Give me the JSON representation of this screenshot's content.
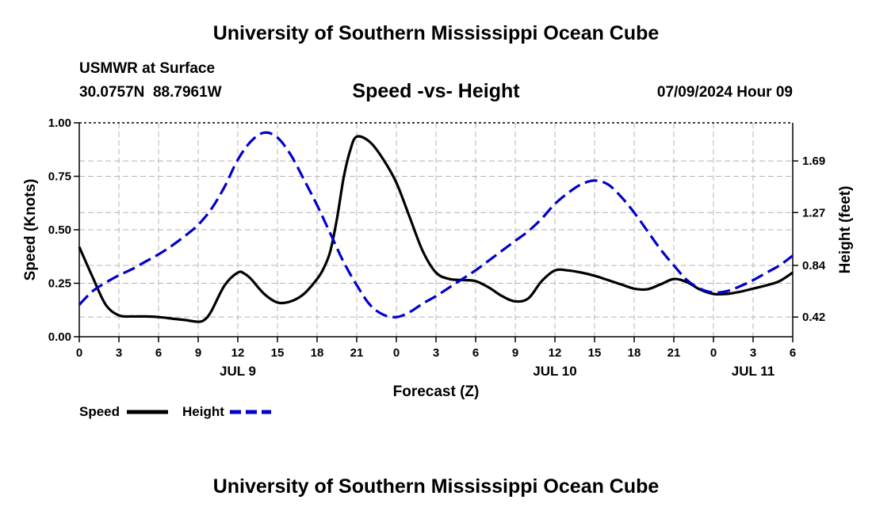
{
  "page": {
    "top_title": "University of Southern Mississippi Ocean Cube",
    "bottom_title": "University of Southern Mississippi Ocean Cube",
    "station": "USMWR at Surface",
    "coords": "30.0757N  88.7961W",
    "datetime": "07/09/2024 Hour 09"
  },
  "chart_data": {
    "type": "line",
    "title": "Speed -vs- Height",
    "xlabel": "Forecast (Z)",
    "ylabel": "Speed (Knots)",
    "y2label": "Height (feet)",
    "x_range": [
      0,
      54
    ],
    "ylim": [
      0,
      1.0
    ],
    "y2lim": [
      0.26,
      2.0
    ],
    "x_ticks": [
      0,
      3,
      6,
      9,
      12,
      15,
      18,
      21,
      24,
      27,
      30,
      33,
      36,
      39,
      42,
      45,
      48,
      51,
      54
    ],
    "x_tick_labels": [
      "0",
      "3",
      "6",
      "9",
      "12",
      "15",
      "18",
      "21",
      "0",
      "3",
      "6",
      "9",
      "12",
      "15",
      "18",
      "21",
      "0",
      "3",
      "6"
    ],
    "day_labels": [
      {
        "label": "JUL 9",
        "x": 12
      },
      {
        "label": "JUL 10",
        "x": 36
      },
      {
        "label": "JUL 11",
        "x": 51
      }
    ],
    "y_ticks": [
      0,
      0.25,
      0.5,
      0.75,
      1.0
    ],
    "y_tick_labels": [
      "0.00",
      "0.25",
      "0.50",
      "0.75",
      "1.00"
    ],
    "y2_ticks": [
      0.42,
      0.84,
      1.27,
      1.69
    ],
    "y2_tick_labels": [
      "0.42",
      "0.84",
      "1.27",
      "1.69"
    ],
    "grid": true,
    "legend_position": "bottom-left",
    "series": [
      {
        "name": "Speed",
        "axis": "left",
        "color": "#000000",
        "style": "solid",
        "x": [
          0,
          1,
          2,
          3,
          4,
          5,
          6,
          7,
          8,
          9,
          9.5,
          10,
          11,
          12,
          12.5,
          13,
          14,
          15,
          16,
          17,
          18,
          18.5,
          19,
          19.5,
          20,
          20.5,
          21,
          22,
          23,
          24,
          25,
          26,
          27,
          28,
          29,
          30,
          31,
          32,
          33,
          34,
          35,
          36,
          37,
          38,
          39,
          40,
          41,
          42,
          43,
          44,
          45,
          46,
          47,
          48,
          49,
          50,
          51,
          52,
          53,
          54
        ],
        "values": [
          0.42,
          0.28,
          0.15,
          0.1,
          0.095,
          0.095,
          0.092,
          0.085,
          0.078,
          0.07,
          0.08,
          0.12,
          0.24,
          0.3,
          0.295,
          0.27,
          0.2,
          0.16,
          0.165,
          0.2,
          0.27,
          0.32,
          0.4,
          0.55,
          0.74,
          0.87,
          0.935,
          0.91,
          0.83,
          0.72,
          0.56,
          0.4,
          0.3,
          0.27,
          0.265,
          0.26,
          0.23,
          0.19,
          0.165,
          0.18,
          0.26,
          0.31,
          0.31,
          0.3,
          0.285,
          0.265,
          0.245,
          0.225,
          0.222,
          0.245,
          0.27,
          0.255,
          0.22,
          0.2,
          0.2,
          0.21,
          0.225,
          0.24,
          0.26,
          0.3
        ]
      },
      {
        "name": "Height",
        "axis": "right",
        "color": "#0000cc",
        "style": "dashed",
        "x": [
          0,
          1,
          2,
          3,
          4,
          5,
          6,
          7,
          8,
          9,
          10,
          11,
          12,
          13,
          14,
          15,
          16,
          17,
          18,
          19,
          20,
          21,
          22,
          23,
          24,
          25,
          26,
          27,
          28,
          29,
          30,
          31,
          32,
          33,
          34,
          35,
          36,
          37,
          38,
          39,
          40,
          41,
          42,
          43,
          44,
          45,
          46,
          47,
          48,
          49,
          50,
          51,
          52,
          53,
          54
        ],
        "values": [
          0.52,
          0.63,
          0.7,
          0.76,
          0.81,
          0.87,
          0.93,
          1.0,
          1.08,
          1.17,
          1.3,
          1.48,
          1.7,
          1.85,
          1.92,
          1.88,
          1.74,
          1.54,
          1.33,
          1.1,
          0.87,
          0.68,
          0.52,
          0.44,
          0.42,
          0.46,
          0.53,
          0.59,
          0.66,
          0.73,
          0.8,
          0.88,
          0.96,
          1.04,
          1.12,
          1.22,
          1.34,
          1.43,
          1.5,
          1.53,
          1.5,
          1.4,
          1.27,
          1.12,
          0.97,
          0.84,
          0.72,
          0.65,
          0.62,
          0.63,
          0.67,
          0.72,
          0.78,
          0.84,
          0.92
        ]
      }
    ]
  }
}
